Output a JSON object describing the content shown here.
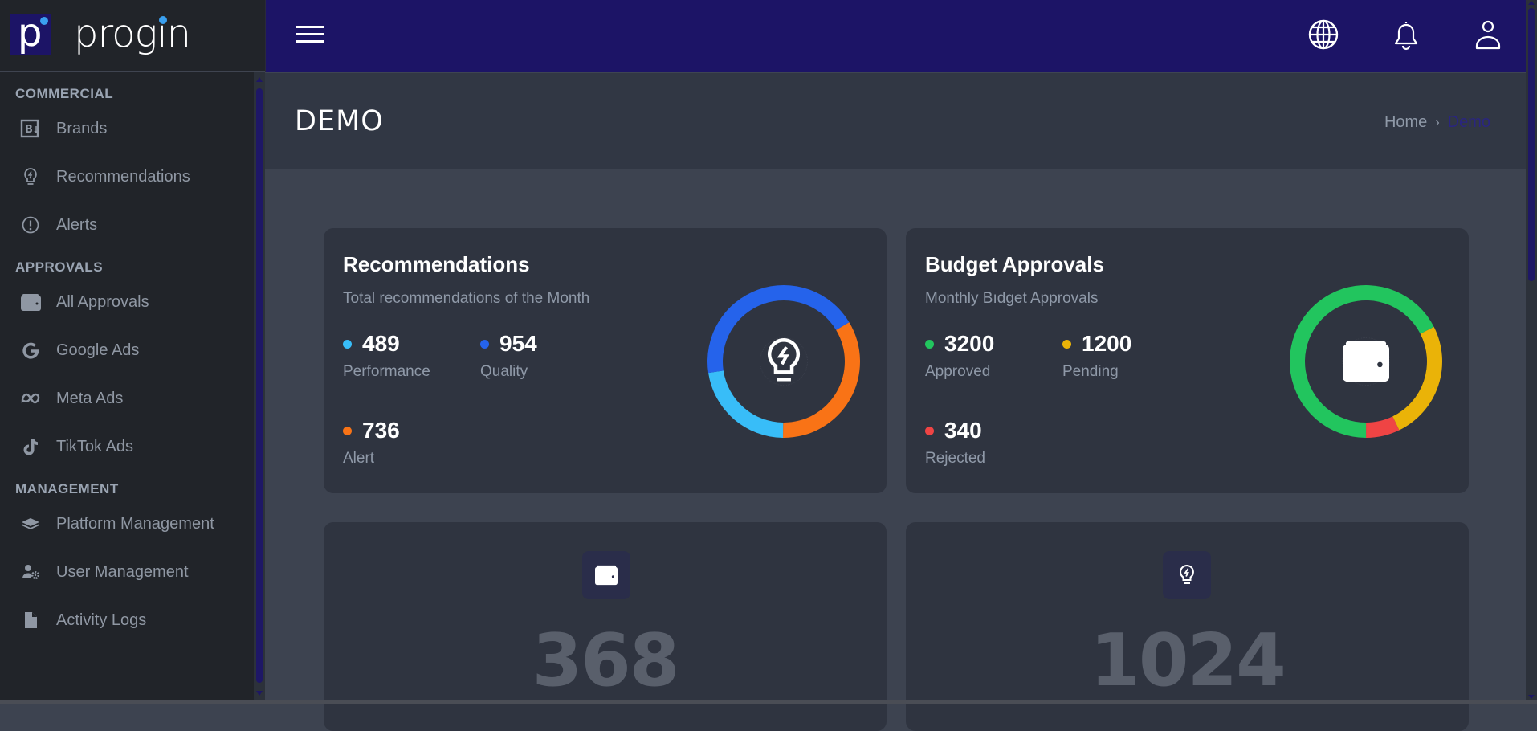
{
  "brand": {
    "name": "prog'in",
    "mark": "p"
  },
  "sidebar": {
    "sections": [
      {
        "title": "COMMERCIAL",
        "items": [
          {
            "label": "Brands",
            "icon": "brand-icon"
          },
          {
            "label": "Recommendations",
            "icon": "lightbulb-icon"
          },
          {
            "label": "Alerts",
            "icon": "alert-circle-icon"
          }
        ]
      },
      {
        "title": "APPROVALS",
        "items": [
          {
            "label": "All Approvals",
            "icon": "wallet-icon"
          },
          {
            "label": "Google Ads",
            "icon": "google-icon"
          },
          {
            "label": "Meta Ads",
            "icon": "meta-icon"
          },
          {
            "label": "TikTok Ads",
            "icon": "tiktok-icon"
          }
        ]
      },
      {
        "title": "MANAGEMENT",
        "items": [
          {
            "label": "Platform Management",
            "icon": "layers-icon"
          },
          {
            "label": "User Management",
            "icon": "user-gear-icon"
          },
          {
            "label": "Activity Logs",
            "icon": "file-icon"
          }
        ]
      }
    ]
  },
  "topbar": {
    "icons": [
      "menu-icon",
      "globe-icon",
      "bell-icon",
      "user-icon"
    ]
  },
  "page": {
    "title": "DEMO",
    "breadcrumb": {
      "home": "Home",
      "separator": "›",
      "current": "Demo"
    }
  },
  "colors": {
    "accent": "#1c1466",
    "performance": "#38bdf8",
    "quality": "#2563eb",
    "alert": "#f97316",
    "approved": "#22c55e",
    "pending": "#eab308",
    "rejected": "#ef4444"
  },
  "cards": {
    "recommendations": {
      "title": "Recommendations",
      "subtitle": "Total recommendations of the Month",
      "stats": [
        {
          "value": "489",
          "label": "Performance"
        },
        {
          "value": "954",
          "label": "Quality"
        },
        {
          "value": "736",
          "label": "Alert"
        }
      ]
    },
    "budget": {
      "title": "Budget Approvals",
      "subtitle": "Monthly Bıdget Approvals",
      "stats": [
        {
          "value": "3200",
          "label": "Approved"
        },
        {
          "value": "1200",
          "label": "Pending"
        },
        {
          "value": "340",
          "label": "Rejected"
        }
      ]
    },
    "wallet_total": {
      "value": "368",
      "icon": "wallet-icon"
    },
    "reco_total": {
      "value": "1024",
      "icon": "lightbulb-icon"
    }
  },
  "chart_data": [
    {
      "type": "pie",
      "title": "Recommendations",
      "categories": [
        "Performance",
        "Quality",
        "Alert"
      ],
      "values": [
        489,
        954,
        736
      ],
      "colors": [
        "#38bdf8",
        "#2563eb",
        "#f97316"
      ],
      "donut": true
    },
    {
      "type": "pie",
      "title": "Budget Approvals",
      "categories": [
        "Approved",
        "Pending",
        "Rejected"
      ],
      "values": [
        3200,
        1200,
        340
      ],
      "colors": [
        "#22c55e",
        "#eab308",
        "#ef4444"
      ],
      "donut": true
    }
  ]
}
